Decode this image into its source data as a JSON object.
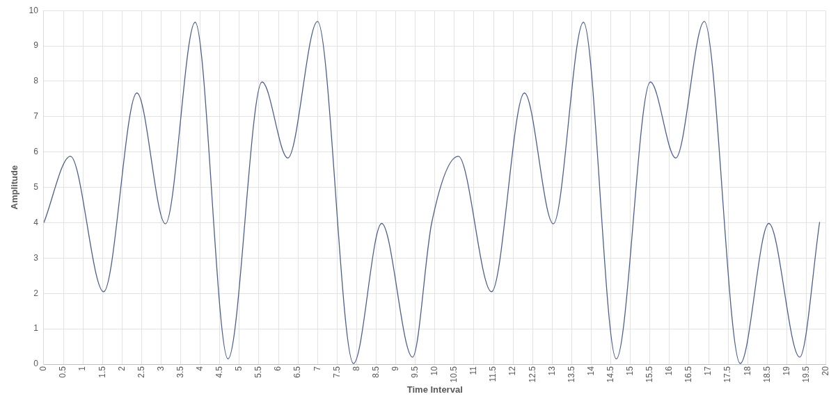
{
  "chart_data": {
    "type": "line",
    "xlabel": "Time Interval",
    "ylabel": "Amplitude",
    "xlim": [
      0,
      20
    ],
    "xticks": [
      0,
      0.5,
      1,
      1.5,
      2,
      2.5,
      3,
      3.5,
      4,
      4.5,
      5,
      5.5,
      6,
      6.5,
      7,
      7.5,
      8,
      8.5,
      9,
      9.5,
      10,
      10.5,
      11,
      11.5,
      12,
      12.5,
      13,
      13.5,
      14,
      14.5,
      15,
      15.5,
      16,
      16.5,
      17,
      17.5,
      18,
      18.5,
      19,
      19.5,
      20
    ],
    "ylim": [
      0,
      10
    ],
    "yticks": [
      0,
      1,
      2,
      3,
      4,
      5,
      6,
      7,
      8,
      9,
      10
    ],
    "grid": true,
    "marker": "none",
    "line_style": "solid",
    "series": [
      {
        "color": "#4a5e8f",
        "x": [
          0,
          0.68,
          1.53,
          2.38,
          3.11,
          3.87,
          4.71,
          5.58,
          6.24,
          7.0,
          7.92,
          8.64,
          9.43,
          9.92,
          10.6,
          11.45,
          12.29,
          13.03,
          13.8,
          14.64,
          15.51,
          16.16,
          16.89,
          17.81,
          18.54,
          19.33,
          19.84
        ],
        "values": [
          4.0,
          5.88,
          2.05,
          7.67,
          3.97,
          9.67,
          0.15,
          7.98,
          5.83,
          9.69,
          0.02,
          3.98,
          0.2,
          4.0,
          5.88,
          2.05,
          7.67,
          3.97,
          9.67,
          0.15,
          7.98,
          5.83,
          9.69,
          0.02,
          3.98,
          0.2,
          4.02
        ]
      }
    ]
  }
}
